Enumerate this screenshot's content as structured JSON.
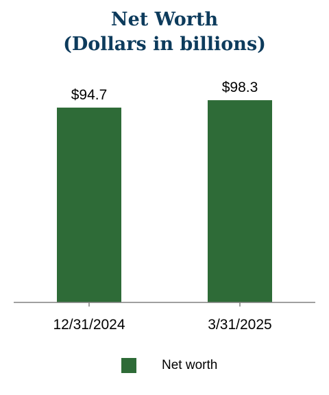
{
  "chart_data": {
    "type": "bar",
    "title": [
      "Net Worth",
      "(Dollars in billions)"
    ],
    "categories": [
      "12/31/2024",
      "3/31/2025"
    ],
    "series": [
      {
        "name": "Net worth",
        "values": [
          94.7,
          98.3
        ],
        "labels": [
          "$94.7",
          "$98.3"
        ],
        "color": "#2e6b37"
      }
    ],
    "ylim": [
      0,
      100
    ],
    "grid": false,
    "legend": "bottom",
    "axis_color": "#808080"
  }
}
